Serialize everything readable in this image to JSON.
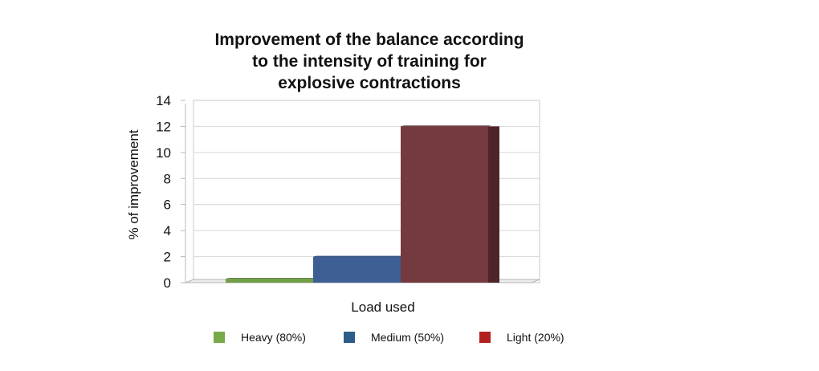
{
  "chart_data": {
    "type": "bar",
    "title": "Improvement of the balance according\nto the intensity of training for\nexplosive contractions",
    "xlabel": "Load used",
    "ylabel": "% of improvement",
    "ylim": [
      0,
      14
    ],
    "yticks": [
      "0",
      "2",
      "4",
      "6",
      "8",
      "10",
      "12",
      "14"
    ],
    "grid": true,
    "legend_position": "bottom",
    "series": [
      {
        "name": "Heavy (80%)",
        "value": 0.3,
        "color": "#78aa48",
        "bar_color": "#6f9e45",
        "side_color": "#4f7530"
      },
      {
        "name": "Medium (50%)",
        "value": 2,
        "color": "#2e5c8a",
        "bar_color": "#3e5f94",
        "side_color": "#2b4670"
      },
      {
        "name": "Light (20%)",
        "value": 12,
        "color": "#b22020",
        "bar_color": "#743a3f",
        "side_color": "#4f2428"
      }
    ]
  }
}
